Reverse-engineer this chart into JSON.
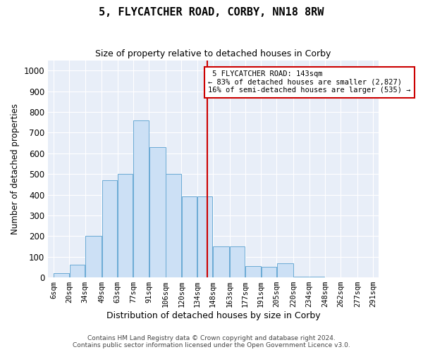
{
  "title": "5, FLYCATCHER ROAD, CORBY, NN18 8RW",
  "subtitle": "Size of property relative to detached houses in Corby",
  "xlabel": "Distribution of detached houses by size in Corby",
  "ylabel": "Number of detached properties",
  "footer_line1": "Contains HM Land Registry data © Crown copyright and database right 2024.",
  "footer_line2": "Contains public sector information licensed under the Open Government Licence v3.0.",
  "property_size": 143,
  "property_label": "5 FLYCATCHER ROAD: 143sqm",
  "annotation_line2": "← 83% of detached houses are smaller (2,827)",
  "annotation_line3": "16% of semi-detached houses are larger (535) →",
  "bar_color": "#cce0f5",
  "bar_edge_color": "#6aaad4",
  "vline_color": "#cc0000",
  "annotation_box_edge_color": "#cc0000",
  "annotation_box_face_color": "#ffffff",
  "background_color": "#e8eef8",
  "ylim": [
    0,
    1050
  ],
  "yticks": [
    0,
    100,
    200,
    300,
    400,
    500,
    600,
    700,
    800,
    900,
    1000
  ],
  "bin_edges": [
    6,
    20,
    34,
    49,
    63,
    77,
    91,
    106,
    120,
    134,
    148,
    163,
    177,
    191,
    205,
    220,
    234,
    248,
    262,
    277,
    291
  ],
  "bin_labels": [
    "6sqm",
    "20sqm",
    "34sqm",
    "49sqm",
    "63sqm",
    "77sqm",
    "91sqm",
    "106sqm",
    "120sqm",
    "134sqm",
    "148sqm",
    "163sqm",
    "177sqm",
    "191sqm",
    "205sqm",
    "220sqm",
    "234sqm",
    "248sqm",
    "262sqm",
    "277sqm",
    "291sqm"
  ],
  "counts": [
    20,
    60,
    200,
    470,
    500,
    760,
    630,
    500,
    390,
    390,
    150,
    150,
    55,
    50,
    70,
    5,
    5,
    0,
    0,
    0
  ],
  "vline_x": 143,
  "figsize": [
    6.0,
    5.0
  ],
  "dpi": 100
}
